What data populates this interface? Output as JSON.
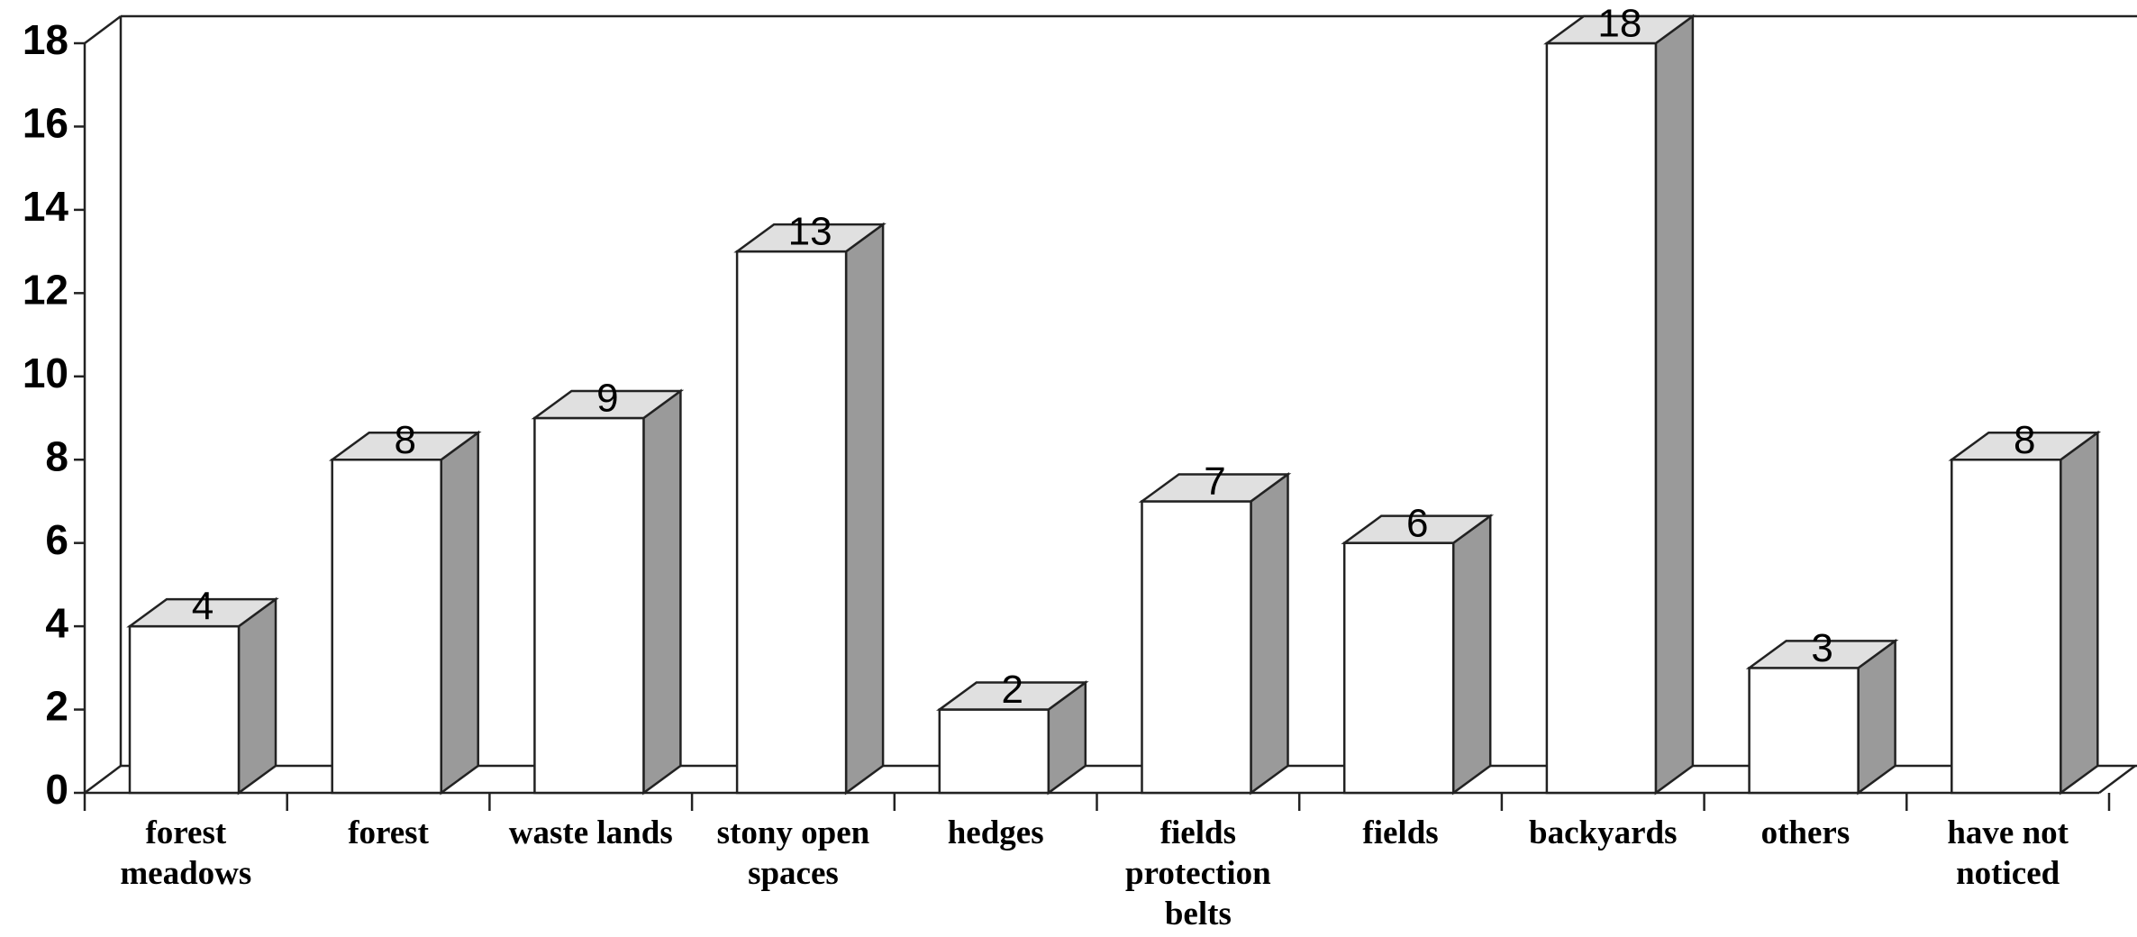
{
  "chart_data": {
    "type": "bar",
    "categories": [
      [
        "forest",
        "meadows"
      ],
      [
        "forest"
      ],
      [
        "waste lands"
      ],
      [
        "stony open",
        "spaces"
      ],
      [
        "hedges"
      ],
      [
        "fields",
        "protection",
        "belts"
      ],
      [
        "fields"
      ],
      [
        "backyards"
      ],
      [
        "others"
      ],
      [
        "have not",
        "noticed"
      ]
    ],
    "values": [
      4,
      8,
      9,
      13,
      2,
      7,
      6,
      18,
      3,
      8
    ],
    "color": "#ffffff",
    "top_color": "#e0e0e0",
    "side_color": "#9a9a9a",
    "ylim": [
      0,
      18
    ],
    "yticks": [
      0,
      2,
      4,
      6,
      8,
      10,
      12,
      14,
      16,
      18
    ],
    "grid": false
  }
}
